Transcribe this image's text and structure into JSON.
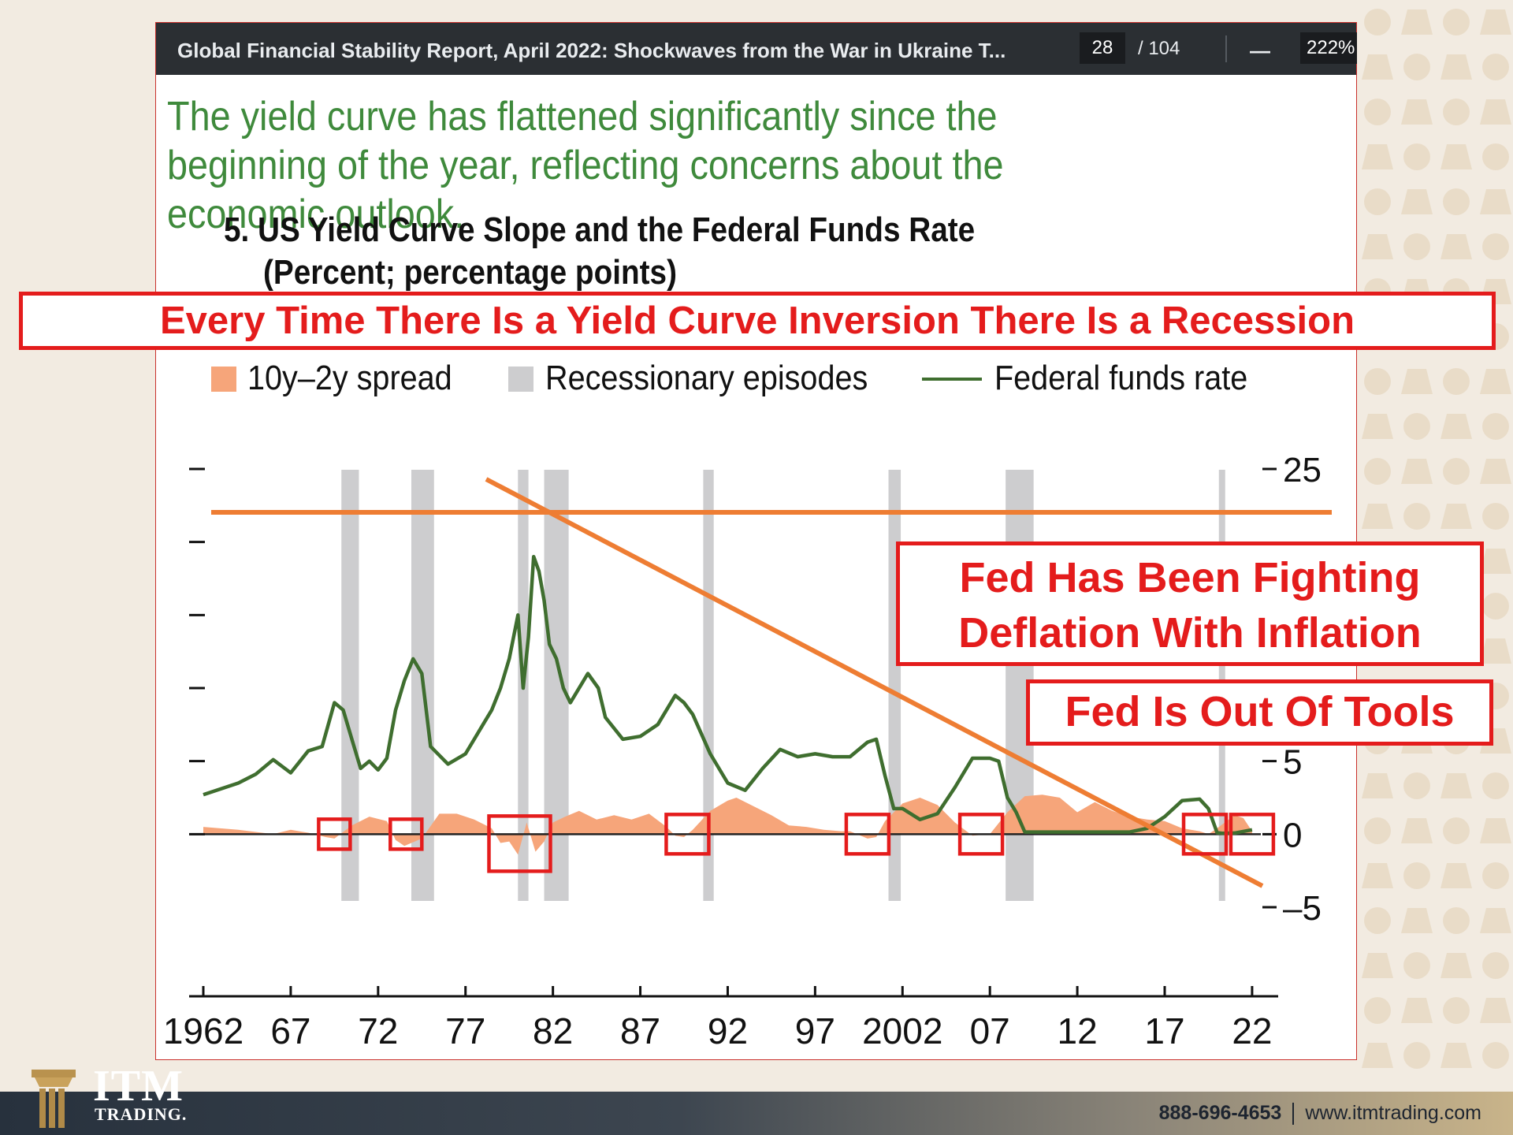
{
  "viewer": {
    "doc_title": "Global Financial Stability Report, April 2022: Shockwaves from the War in Ukraine T...",
    "page_current": "28",
    "page_total": "/ 104",
    "zoom_minus": "—",
    "zoom": "222%"
  },
  "headline": "The yield curve has flattened significantly since the beginning of the year, reflecting concerns about the economic outlook.",
  "banner": "Every Time There Is a Yield Curve Inversion There Is a Recession",
  "callouts": {
    "fighting": [
      "Fed Has Been Fighting",
      "Deflation With Inflation"
    ],
    "tools": "Fed Is Out Of Tools"
  },
  "footer": {
    "phone": "888-696-4653",
    "website": "www.itmtrading.com",
    "logo_name": "ITM",
    "logo_sub": "TRADING."
  },
  "colors": {
    "spread": "#f6a57a",
    "recession": "#cdcdcf",
    "ffr": "#3f6e2f",
    "overlay_line": "#ee7d33",
    "annotation_red": "#e41c1c"
  },
  "chart_data": {
    "type": "line",
    "title": "5. US Yield Curve Slope and the Federal Funds Rate",
    "subtitle": "(Percent; percentage points)",
    "legend": [
      "10y–2y spread",
      "Recessionary episodes",
      "Federal funds rate"
    ],
    "legend_position": "top",
    "x_ticks": [
      "1962",
      "67",
      "72",
      "77",
      "82",
      "87",
      "92",
      "97",
      "2002",
      "07",
      "12",
      "17",
      "22"
    ],
    "xlim": [
      1962,
      2022.5
    ],
    "ylim": [
      -5,
      25
    ],
    "y_ticks_right": [
      "25",
      "5",
      "0",
      "–5"
    ],
    "y_tick_values": [
      25,
      20,
      15,
      10,
      5,
      0,
      -5
    ],
    "recessions": [
      [
        1969.9,
        1970.9
      ],
      [
        1973.9,
        1975.2
      ],
      [
        1980.0,
        1980.6
      ],
      [
        1981.5,
        1982.9
      ],
      [
        1990.6,
        1991.2
      ],
      [
        2001.2,
        2001.9
      ],
      [
        2007.9,
        2009.5
      ],
      [
        2020.1,
        2020.4
      ]
    ],
    "series": [
      {
        "name": "Federal funds rate",
        "x": [
          1962.0,
          1963.0,
          1964.0,
          1965.0,
          1966.0,
          1967.0,
          1968.0,
          1968.8,
          1969.5,
          1970.0,
          1970.5,
          1971.0,
          1971.5,
          1972.0,
          1972.5,
          1973.0,
          1973.5,
          1974.0,
          1974.5,
          1975.0,
          1975.5,
          1976.0,
          1977.0,
          1977.5,
          1978.0,
          1978.5,
          1979.0,
          1979.5,
          1980.0,
          1980.3,
          1980.6,
          1980.9,
          1981.2,
          1981.5,
          1981.8,
          1982.2,
          1982.6,
          1983.0,
          1984.0,
          1984.6,
          1985.0,
          1986.0,
          1987.0,
          1988.0,
          1989.0,
          1989.5,
          1990.0,
          1991.0,
          1992.0,
          1993.0,
          1994.0,
          1995.0,
          1996.0,
          1997.0,
          1998.0,
          1999.0,
          2000.0,
          2000.5,
          2001.0,
          2001.5,
          2002.0,
          2003.0,
          2004.0,
          2005.0,
          2006.0,
          2007.0,
          2007.5,
          2008.0,
          2008.5,
          2009.0,
          2010.0,
          2015.0,
          2016.0,
          2017.0,
          2018.0,
          2019.0,
          2019.5,
          2020.0,
          2020.3,
          2021.0,
          2022.0
        ],
        "values": [
          2.7,
          3.1,
          3.5,
          4.1,
          5.1,
          4.2,
          5.7,
          6.0,
          9.0,
          8.5,
          6.5,
          4.5,
          5.0,
          4.4,
          5.2,
          8.5,
          10.5,
          12.0,
          11.0,
          6.0,
          5.4,
          4.8,
          5.5,
          6.5,
          7.5,
          8.5,
          10.0,
          12.0,
          15.0,
          10.0,
          13.5,
          19.0,
          18.0,
          16.0,
          13.0,
          12.0,
          10.0,
          9.0,
          11.0,
          10.0,
          8.0,
          6.5,
          6.7,
          7.5,
          9.5,
          9.0,
          8.2,
          5.5,
          3.5,
          3.0,
          4.5,
          5.8,
          5.3,
          5.5,
          5.3,
          5.3,
          6.3,
          6.5,
          4.0,
          1.75,
          1.75,
          1.0,
          1.4,
          3.2,
          5.2,
          5.2,
          5.0,
          2.5,
          1.5,
          0.15,
          0.15,
          0.15,
          0.4,
          1.2,
          2.3,
          2.4,
          1.75,
          0.1,
          0.06,
          0.08,
          0.3
        ]
      },
      {
        "name": "10y–2y spread",
        "x": [
          1962.0,
          1964.0,
          1966.0,
          1967.0,
          1968.0,
          1969.0,
          1969.5,
          1970.5,
          1971.5,
          1972.5,
          1973.0,
          1973.5,
          1974.5,
          1975.5,
          1976.5,
          1977.5,
          1978.5,
          1979.0,
          1979.5,
          1980.0,
          1980.5,
          1981.0,
          1981.5,
          1982.0,
          1982.7,
          1983.5,
          1984.5,
          1985.5,
          1986.5,
          1987.5,
          1988.5,
          1989.0,
          1989.5,
          1990.0,
          1991.0,
          1992.0,
          1992.5,
          1993.5,
          1994.5,
          1995.5,
          1996.5,
          1997.5,
          1998.5,
          1999.0,
          2000.0,
          2000.5,
          2001.0,
          2002.0,
          2003.0,
          2004.0,
          2005.0,
          2006.0,
          2007.0,
          2008.0,
          2009.0,
          2010.0,
          2011.0,
          2012.0,
          2013.0,
          2014.0,
          2015.0,
          2016.0,
          2017.0,
          2018.0,
          2019.0,
          2019.5,
          2020.0,
          2021.0,
          2021.5,
          2022.0
        ],
        "values": [
          0.5,
          0.3,
          0.0,
          0.3,
          0.1,
          -0.2,
          -0.3,
          0.6,
          1.2,
          0.9,
          -0.4,
          -0.8,
          -0.3,
          1.4,
          1.4,
          1.0,
          0.4,
          -0.6,
          -0.5,
          -1.4,
          0.8,
          -1.2,
          -0.5,
          0.8,
          1.2,
          1.6,
          1.0,
          1.3,
          1.0,
          1.4,
          0.5,
          -0.1,
          -0.2,
          0.3,
          1.6,
          2.3,
          2.5,
          1.9,
          1.3,
          0.6,
          0.5,
          0.3,
          0.2,
          0.2,
          -0.3,
          -0.2,
          0.9,
          2.1,
          2.5,
          2.0,
          0.8,
          -0.1,
          0.0,
          1.5,
          2.6,
          2.7,
          2.5,
          1.5,
          2.2,
          1.6,
          1.2,
          1.0,
          0.9,
          0.4,
          0.2,
          0.0,
          0.4,
          1.3,
          1.1,
          0.2
        ]
      }
    ]
  }
}
